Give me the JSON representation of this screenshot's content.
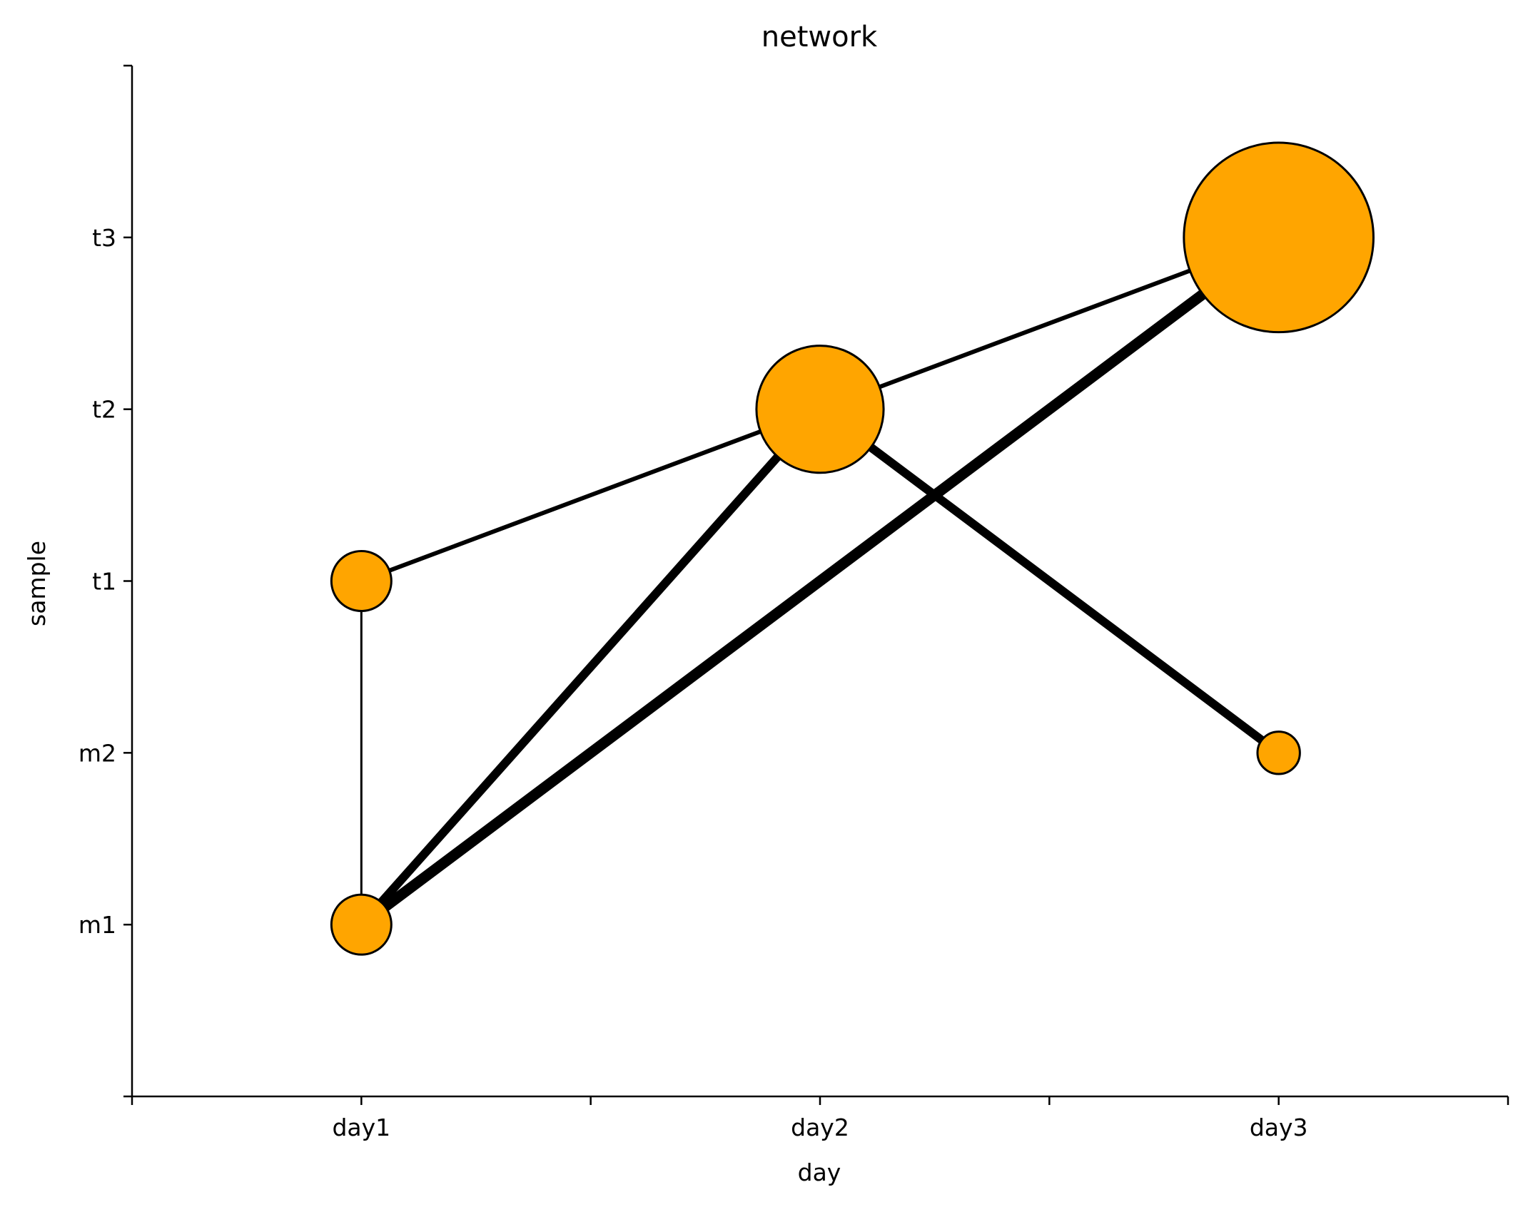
{
  "chart_data": {
    "type": "network",
    "title": "network",
    "xlabel": "day",
    "ylabel": "sample",
    "x_categories": [
      "day1",
      "day2",
      "day3"
    ],
    "y_categories": [
      "m1",
      "m2",
      "t1",
      "t2",
      "t3"
    ],
    "xlim": [
      -0.5,
      2.5
    ],
    "ylim": [
      -1,
      5
    ],
    "grid": false,
    "node_color": "#FFA500",
    "edge_color": "#000000",
    "nodes": [
      {
        "x": "day1",
        "y": "m1",
        "size": 1
      },
      {
        "x": "day1",
        "y": "t1",
        "size": 1
      },
      {
        "x": "day2",
        "y": "t2",
        "size": 4.5
      },
      {
        "x": "day3",
        "y": "m2",
        "size": 0.5
      },
      {
        "x": "day3",
        "y": "t3",
        "size": 10
      }
    ],
    "edges": [
      {
        "from": [
          0,
          0
        ],
        "to": [
          0,
          2
        ],
        "weight": 1
      },
      {
        "from": [
          0,
          2
        ],
        "to": [
          1,
          3
        ],
        "weight": 2
      },
      {
        "from": [
          1,
          3
        ],
        "to": [
          2,
          4
        ],
        "weight": 2
      },
      {
        "from": [
          0,
          0
        ],
        "to": [
          1,
          3
        ],
        "weight": 4
      },
      {
        "from": [
          0,
          0
        ],
        "to": [
          2,
          4
        ],
        "weight": 5
      },
      {
        "from": [
          1,
          3
        ],
        "to": [
          2,
          1
        ],
        "weight": 4
      }
    ]
  }
}
